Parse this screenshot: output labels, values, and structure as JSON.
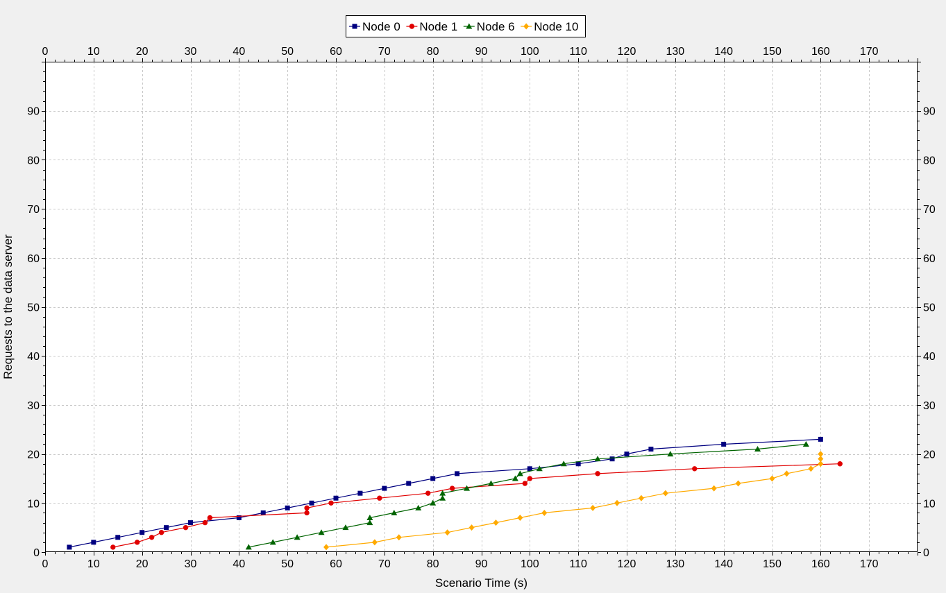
{
  "chart_data": {
    "type": "line",
    "title": "",
    "xlabel": "Scenario Time (s)",
    "ylabel": "Requests to the data server",
    "xlim": [
      0,
      180
    ],
    "ylim": [
      0,
      100
    ],
    "x_ticks": [
      0,
      10,
      20,
      30,
      40,
      50,
      60,
      70,
      80,
      90,
      100,
      110,
      120,
      130,
      140,
      150,
      160,
      170
    ],
    "y_ticks": [
      0,
      10,
      20,
      30,
      40,
      50,
      60,
      70,
      80,
      90
    ],
    "grid": true,
    "legend_position": "top-center",
    "background_color": "#f0f0f0",
    "plot_background": "#ffffff",
    "grid_color": "#c8c8c8",
    "series": [
      {
        "name": "Node 0",
        "color": "#000080",
        "marker": "square",
        "x": [
          5,
          10,
          15,
          20,
          25,
          30,
          40,
          45,
          50,
          55,
          60,
          65,
          70,
          75,
          80,
          85,
          100,
          110,
          117,
          120,
          125,
          140,
          160
        ],
        "y": [
          1,
          2,
          3,
          4,
          5,
          6,
          7,
          8,
          9,
          10,
          11,
          12,
          13,
          14,
          15,
          16,
          17,
          18,
          19,
          20,
          21,
          22,
          23
        ]
      },
      {
        "name": "Node 1",
        "color": "#e00000",
        "marker": "circle",
        "x": [
          14,
          19,
          22,
          24,
          29,
          33,
          34,
          54,
          54,
          59,
          69,
          79,
          84,
          99,
          100,
          114,
          134,
          164
        ],
        "y": [
          1,
          2,
          3,
          4,
          5,
          6,
          7,
          8,
          9,
          10,
          11,
          12,
          13,
          14,
          15,
          16,
          17,
          18
        ]
      },
      {
        "name": "Node 6",
        "color": "#006400",
        "marker": "triangle",
        "x": [
          42,
          47,
          52,
          57,
          62,
          67,
          67,
          72,
          77,
          80,
          82,
          82,
          87,
          92,
          97,
          98,
          102,
          107,
          114,
          129,
          147,
          157
        ],
        "y": [
          1,
          2,
          3,
          4,
          5,
          6,
          7,
          8,
          9,
          10,
          11,
          12,
          13,
          14,
          15,
          16,
          17,
          18,
          19,
          20,
          21,
          22
        ]
      },
      {
        "name": "Node 10",
        "color": "#ffaa00",
        "marker": "diamond",
        "x": [
          58,
          68,
          73,
          83,
          88,
          93,
          98,
          103,
          113,
          118,
          123,
          128,
          138,
          143,
          150,
          153,
          158,
          160,
          160,
          160
        ],
        "y": [
          1,
          2,
          3,
          4,
          5,
          6,
          7,
          8,
          9,
          10,
          11,
          12,
          13,
          14,
          15,
          16,
          17,
          18,
          19,
          20
        ]
      }
    ]
  }
}
